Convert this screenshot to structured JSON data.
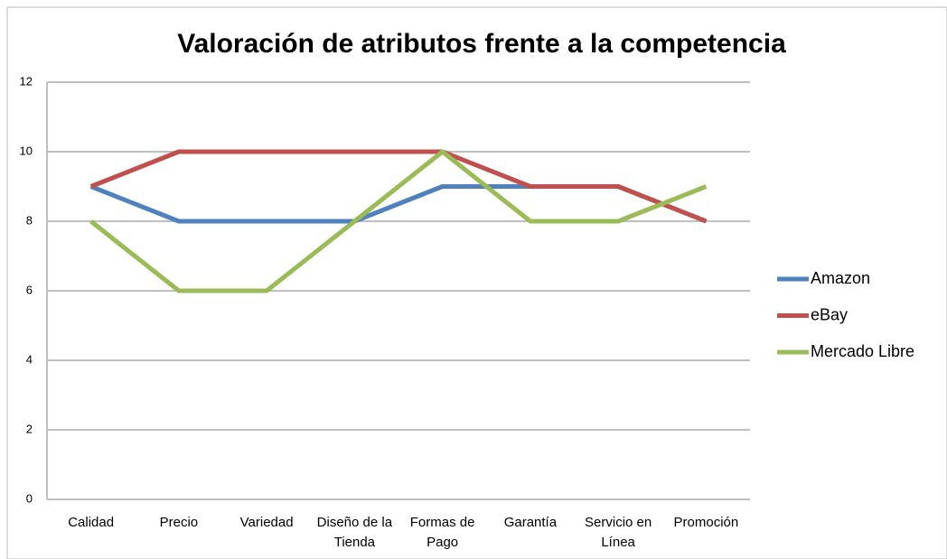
{
  "chart_data": {
    "type": "line",
    "title": "Valoración de atributos frente a la competencia",
    "categories": [
      "Calidad",
      "Precio",
      "Variedad",
      "Diseño de la Tienda",
      "Formas de Pago",
      "Garantía",
      "Servicio en Línea",
      "Promoción"
    ],
    "series": [
      {
        "name": "Amazon",
        "color": "#4f81bd",
        "values": [
          9,
          8,
          8,
          8,
          9,
          9,
          9,
          8
        ]
      },
      {
        "name": "eBay",
        "color": "#c0504d",
        "values": [
          9,
          10,
          10,
          10,
          10,
          9,
          9,
          8
        ]
      },
      {
        "name": "Mercado Libre",
        "color": "#9bbb59",
        "values": [
          8,
          6,
          6,
          8,
          10,
          8,
          8,
          9
        ]
      }
    ],
    "ylim": [
      0,
      12
    ],
    "yticks": [
      0,
      2,
      4,
      6,
      8,
      10,
      12
    ],
    "grid": true,
    "legend": "right"
  }
}
